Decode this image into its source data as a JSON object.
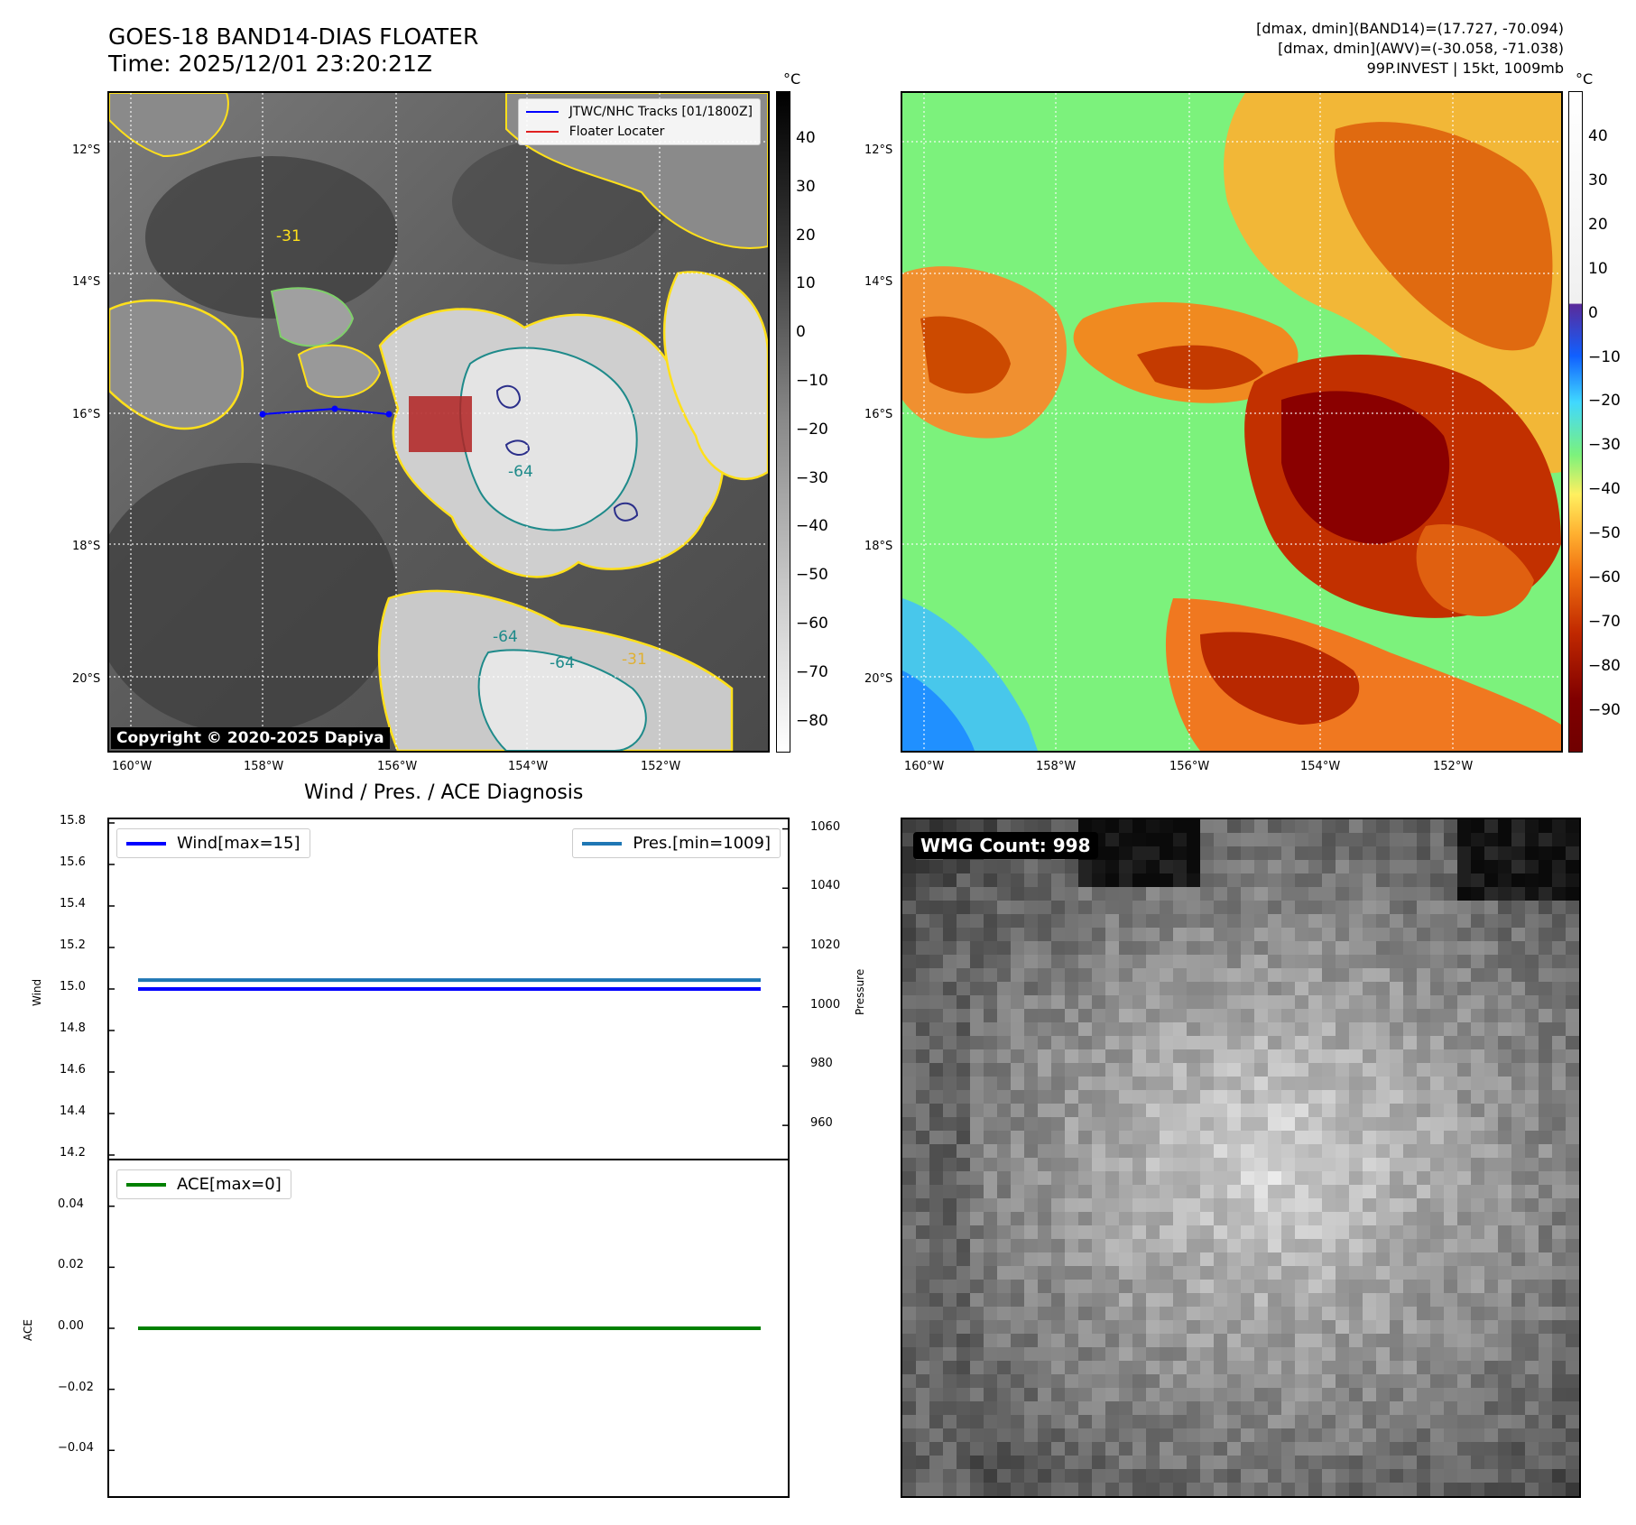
{
  "header": {
    "title_line1": "GOES-18 BAND14-DIAS FLOATER",
    "title_line2": "Time: 2025/12/01 23:20:21Z",
    "info_line1": "[dmax, dmin](BAND14)=(17.727, -70.094)",
    "info_line2": "[dmax, dmin](AWV)=(-30.058, -71.038)",
    "info_line3": "99P.INVEST | 15kt, 1009mb"
  },
  "ir_panel": {
    "lat_ticks": [
      "12°S",
      "14°S",
      "16°S",
      "18°S",
      "20°S"
    ],
    "lon_ticks": [
      "160°W",
      "158°W",
      "156°W",
      "154°W",
      "152°W"
    ],
    "legend_track": "JTWC/NHC Tracks [01/1800Z]",
    "legend_floater": "Floater Locater",
    "copyright": "Copyright © 2020-2025 Dapiya",
    "contour_labels": [
      "-31",
      "-64",
      "-64",
      "-64",
      "-31"
    ],
    "colorbar_unit": "°C",
    "colorbar_ticks": [
      "40",
      "30",
      "20",
      "10",
      "0",
      "−10",
      "−20",
      "−30",
      "−40",
      "−50",
      "−60",
      "−70",
      "−80"
    ],
    "colors": {
      "track": "#0000ff",
      "floater": "#b22222",
      "contour_warm": "#ffe01a",
      "contour_mid": "#7fcf6a",
      "contour_cold": "#1e8a8a",
      "contour_coldest": "#2b2f8a"
    }
  },
  "wv_panel": {
    "lat_ticks": [
      "12°S",
      "14°S",
      "16°S",
      "18°S",
      "20°S"
    ],
    "lon_ticks": [
      "160°W",
      "158°W",
      "156°W",
      "154°W",
      "152°W"
    ],
    "colorbar_unit": "°C",
    "colorbar_ticks": [
      "40",
      "30",
      "20",
      "10",
      "0",
      "−10",
      "−20",
      "−30",
      "−40",
      "−50",
      "−60",
      "−70",
      "−80",
      "−90"
    ]
  },
  "diag_title": "Wind / Pres. / ACE Diagnosis",
  "wmg": {
    "label": "WMG Count: 998"
  },
  "chart_data": [
    {
      "type": "line",
      "title": "Wind / Pres. / ACE Diagnosis",
      "ylabel": "Wind",
      "y2label": "Pressure",
      "ylim": [
        14.2,
        15.8
      ],
      "y2lim": [
        950,
        1062
      ],
      "yticks": [
        "15.8",
        "15.6",
        "15.4",
        "15.2",
        "15.0",
        "14.8",
        "14.6",
        "14.4",
        "14.2"
      ],
      "y2ticks": [
        "1060",
        "1040",
        "1020",
        "1000",
        "980",
        "960"
      ],
      "series": [
        {
          "name": "Wind[max=15]",
          "color": "#0000ff",
          "axis": "left",
          "values": [
            15,
            15
          ]
        },
        {
          "name": "Pres.[min=1009]",
          "color": "#1f77b4",
          "axis": "right",
          "values": [
            1009,
            1009
          ]
        }
      ]
    },
    {
      "type": "line",
      "ylabel": "ACE",
      "ylim": [
        -0.055,
        0.055
      ],
      "yticks": [
        "0.04",
        "0.02",
        "0.00",
        "−0.02",
        "−0.04"
      ],
      "series": [
        {
          "name": "ACE[max=0]",
          "color": "#008000",
          "axis": "left",
          "values": [
            0,
            0
          ]
        }
      ]
    }
  ]
}
